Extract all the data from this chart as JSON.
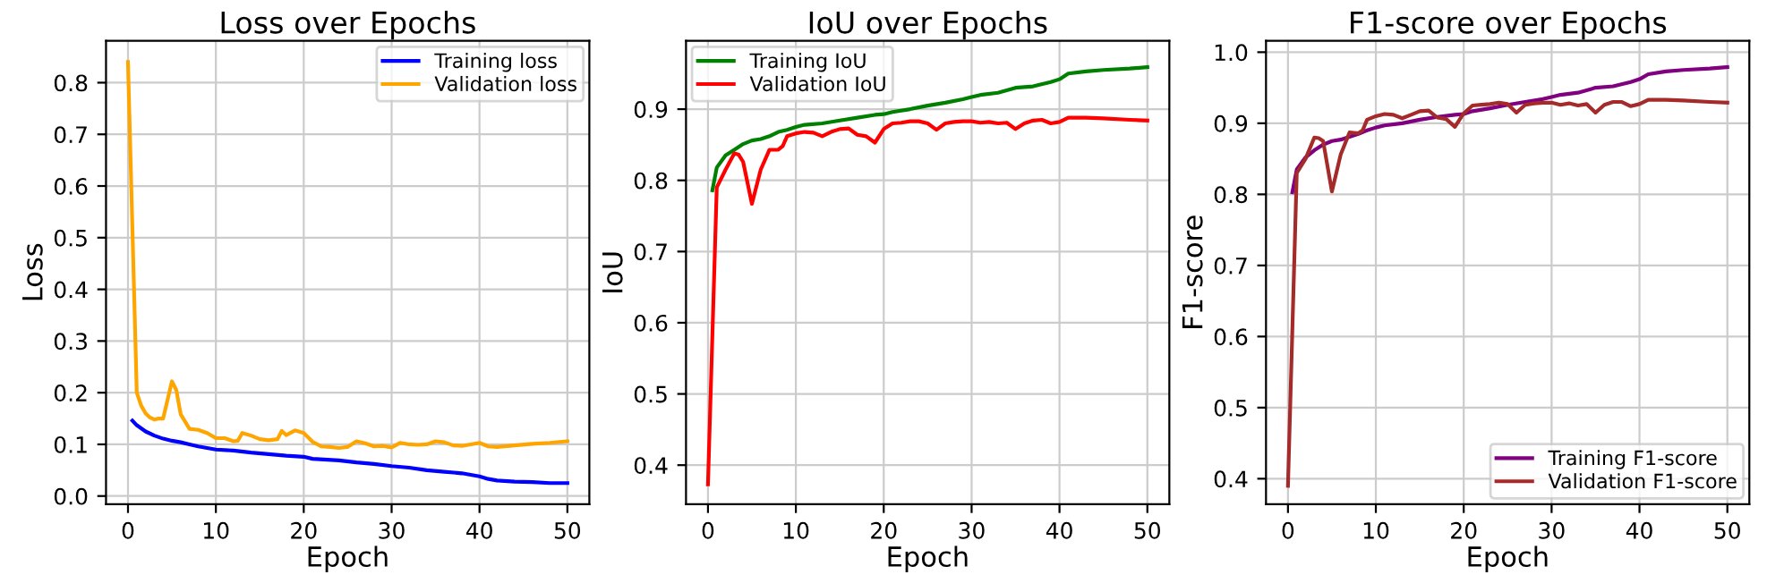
{
  "chart_data": [
    {
      "type": "line",
      "title": "Loss over Epochs",
      "xlabel": "Epoch",
      "ylabel": "Loss",
      "xlim": [
        -2.5,
        52.5
      ],
      "ylim": [
        -0.016,
        0.881
      ],
      "xticks": [
        0,
        10,
        20,
        30,
        40,
        50
      ],
      "yticks": [
        {
          "value": 0,
          "label": "0.0"
        },
        0.1,
        0.2,
        0.3,
        0.4,
        0.5,
        0.6,
        0.7,
        0.8
      ],
      "grid": true,
      "legend": "top right",
      "series": [
        {
          "name": "Training loss",
          "color": "#0000ff",
          "x": [
            0.5,
            1,
            2,
            3,
            4,
            5,
            6,
            7,
            8,
            9,
            10,
            12,
            14,
            16,
            18,
            20,
            21,
            24,
            26,
            28,
            30,
            32,
            34,
            36,
            38,
            40,
            41,
            42,
            44,
            46,
            48,
            50
          ],
          "values": [
            0.146,
            0.137,
            0.125,
            0.117,
            0.111,
            0.107,
            0.104,
            0.1,
            0.096,
            0.093,
            0.09,
            0.088,
            0.084,
            0.081,
            0.078,
            0.076,
            0.072,
            0.069,
            0.065,
            0.062,
            0.058,
            0.055,
            0.05,
            0.047,
            0.044,
            0.038,
            0.033,
            0.03,
            0.028,
            0.027,
            0.025,
            0.025
          ]
        },
        {
          "name": "Validation loss",
          "color": "#ffa500",
          "x": [
            0,
            1,
            1.5,
            2,
            2.5,
            3,
            3.5,
            4,
            5,
            5.5,
            6,
            7,
            8,
            9,
            10,
            11,
            12,
            12.5,
            13,
            14,
            15,
            16,
            17,
            17.5,
            18,
            19,
            20,
            21,
            22,
            23,
            24,
            25,
            26,
            27,
            28,
            29,
            30,
            31,
            32,
            33,
            34,
            35,
            36,
            37,
            38,
            39,
            40,
            41,
            42,
            44,
            46,
            48,
            50
          ],
          "values": [
            0.84,
            0.2,
            0.175,
            0.16,
            0.152,
            0.148,
            0.15,
            0.15,
            0.222,
            0.205,
            0.158,
            0.13,
            0.128,
            0.122,
            0.112,
            0.112,
            0.106,
            0.107,
            0.122,
            0.117,
            0.11,
            0.108,
            0.11,
            0.126,
            0.118,
            0.127,
            0.122,
            0.105,
            0.096,
            0.095,
            0.093,
            0.095,
            0.106,
            0.102,
            0.096,
            0.097,
            0.094,
            0.103,
            0.1,
            0.099,
            0.1,
            0.106,
            0.104,
            0.098,
            0.097,
            0.1,
            0.103,
            0.096,
            0.095,
            0.098,
            0.101,
            0.103,
            0.106
          ]
        }
      ]
    },
    {
      "type": "line",
      "title": "IoU over Epochs",
      "xlabel": "Epoch",
      "ylabel": "IoU",
      "xlim": [
        -2.5,
        52.5
      ],
      "ylim": [
        0.345,
        0.996
      ],
      "xticks": [
        0,
        10,
        20,
        30,
        40,
        50
      ],
      "yticks": [
        0.4,
        0.5,
        0.6,
        0.7,
        0.8,
        0.9
      ],
      "grid": true,
      "legend": "top left",
      "series": [
        {
          "name": "Training IoU",
          "color": "#008000",
          "x": [
            0.5,
            1,
            2,
            3,
            4,
            5,
            6,
            7,
            8,
            9,
            10,
            11,
            13,
            15,
            17,
            19,
            20,
            21,
            23,
            25,
            27,
            29,
            30,
            31,
            33,
            35,
            37,
            39,
            40,
            41,
            43,
            45,
            48,
            50
          ],
          "values": [
            0.786,
            0.818,
            0.835,
            0.843,
            0.851,
            0.856,
            0.858,
            0.862,
            0.868,
            0.871,
            0.875,
            0.878,
            0.88,
            0.884,
            0.888,
            0.892,
            0.893,
            0.896,
            0.9,
            0.905,
            0.909,
            0.914,
            0.917,
            0.92,
            0.923,
            0.93,
            0.932,
            0.938,
            0.942,
            0.95,
            0.953,
            0.955,
            0.957,
            0.959
          ]
        },
        {
          "name": "Validation IoU",
          "color": "#ff0000",
          "x": [
            0,
            1,
            2,
            3,
            3.5,
            4,
            5,
            6,
            7,
            8,
            8.5,
            9,
            10,
            11,
            12,
            13,
            14,
            15,
            16,
            17,
            18,
            19,
            20,
            21,
            22,
            23,
            24,
            25,
            26,
            27,
            28,
            29,
            30,
            31,
            32,
            33,
            34,
            35,
            36,
            37,
            38,
            39,
            40,
            41,
            43,
            45,
            48,
            50
          ],
          "values": [
            0.373,
            0.79,
            0.815,
            0.838,
            0.836,
            0.826,
            0.767,
            0.815,
            0.843,
            0.843,
            0.848,
            0.862,
            0.866,
            0.868,
            0.867,
            0.862,
            0.868,
            0.872,
            0.873,
            0.864,
            0.862,
            0.853,
            0.872,
            0.88,
            0.881,
            0.883,
            0.883,
            0.88,
            0.871,
            0.88,
            0.882,
            0.883,
            0.883,
            0.881,
            0.882,
            0.88,
            0.881,
            0.872,
            0.88,
            0.884,
            0.885,
            0.88,
            0.882,
            0.888,
            0.888,
            0.887,
            0.885,
            0.884
          ]
        }
      ]
    },
    {
      "type": "line",
      "title": "F1-score over Epochs",
      "xlabel": "Epoch",
      "ylabel": "F1-score",
      "xlim": [
        -2.5,
        52.5
      ],
      "ylim": [
        0.364,
        1.016
      ],
      "xticks": [
        0,
        10,
        20,
        30,
        40,
        50
      ],
      "yticks": [
        0.4,
        0.5,
        0.6,
        0.7,
        0.8,
        0.9,
        {
          "value": 1,
          "label": "1.0"
        }
      ],
      "grid": true,
      "legend": "bottom right",
      "series": [
        {
          "name": "Training F1-score",
          "color": "#800080",
          "x": [
            0.5,
            1,
            2,
            3,
            4,
            5,
            6,
            7,
            8,
            9,
            10,
            11,
            13,
            15,
            17,
            19,
            20,
            21,
            23,
            25,
            27,
            29,
            30,
            31,
            33,
            35,
            37,
            39,
            40,
            41,
            43,
            45,
            48,
            50
          ],
          "values": [
            0.803,
            0.835,
            0.852,
            0.862,
            0.87,
            0.875,
            0.877,
            0.881,
            0.885,
            0.89,
            0.894,
            0.897,
            0.9,
            0.905,
            0.909,
            0.912,
            0.913,
            0.917,
            0.921,
            0.926,
            0.93,
            0.934,
            0.937,
            0.94,
            0.943,
            0.95,
            0.952,
            0.958,
            0.962,
            0.969,
            0.973,
            0.975,
            0.977,
            0.979
          ]
        },
        {
          "name": "Validation F1-score",
          "color": "#a52a2a",
          "x": [
            0,
            1,
            2,
            3,
            3.5,
            4,
            5,
            6,
            7,
            8,
            8.5,
            9,
            10,
            11,
            12,
            13,
            14,
            15,
            16,
            17,
            18,
            19,
            20,
            21,
            22,
            23,
            24,
            25,
            26,
            27,
            28,
            29,
            30,
            31,
            32,
            33,
            34,
            35,
            36,
            37,
            38,
            39,
            40,
            41,
            43,
            45,
            48,
            50
          ],
          "values": [
            0.39,
            0.83,
            0.85,
            0.88,
            0.879,
            0.875,
            0.804,
            0.856,
            0.887,
            0.886,
            0.89,
            0.905,
            0.91,
            0.913,
            0.912,
            0.907,
            0.912,
            0.917,
            0.918,
            0.908,
            0.906,
            0.895,
            0.914,
            0.925,
            0.926,
            0.927,
            0.929,
            0.927,
            0.915,
            0.926,
            0.928,
            0.929,
            0.929,
            0.926,
            0.928,
            0.925,
            0.927,
            0.915,
            0.926,
            0.93,
            0.93,
            0.924,
            0.927,
            0.933,
            0.933,
            0.932,
            0.93,
            0.929
          ]
        }
      ]
    }
  ]
}
